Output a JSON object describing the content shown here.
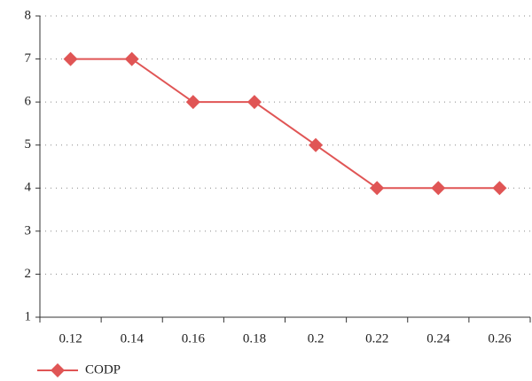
{
  "chart_data": {
    "type": "line",
    "categories": [
      "0.12",
      "0.14",
      "0.16",
      "0.18",
      "0.2",
      "0.22",
      "0.24",
      "0.26"
    ],
    "series": [
      {
        "name": "CODP",
        "color": "#e05555",
        "values": [
          7,
          7,
          6,
          6,
          5,
          4,
          4,
          4
        ]
      }
    ],
    "ylim": [
      1,
      8
    ],
    "yticks": [
      1,
      2,
      3,
      4,
      5,
      6,
      7,
      8
    ],
    "grid": true,
    "legend": "bottom-left"
  }
}
